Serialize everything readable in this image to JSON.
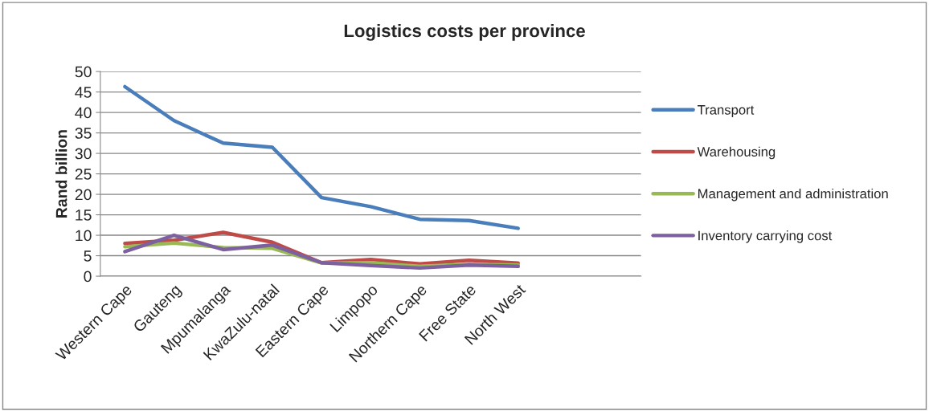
{
  "chart_data": {
    "type": "line",
    "title": "Logistics costs per province",
    "ylabel": "Rand billion",
    "categories": [
      "Western Cape",
      "Gauteng",
      "Mpumalanga",
      "KwaZulu-natal",
      "Eastern Cape",
      "Limpopo",
      "Northern Cape",
      "Free State",
      "North West",
      null,
      null
    ],
    "series": [
      {
        "name": "Transport",
        "color": "#4a7ebb",
        "values": [
          46.3,
          38,
          32.5,
          31.5,
          19.2,
          17,
          13.9,
          13.6,
          11.7,
          null,
          null
        ]
      },
      {
        "name": "Warehousing",
        "color": "#be4b48",
        "values": [
          8,
          8.8,
          10.7,
          8.3,
          3.3,
          4.1,
          3,
          3.9,
          3.2,
          null,
          null
        ]
      },
      {
        "name": "Management and administration",
        "color": "#98b954",
        "values": [
          7.2,
          8.1,
          7,
          6.8,
          3.2,
          3.3,
          2.4,
          2.9,
          2.7,
          null,
          null
        ]
      },
      {
        "name": "Inventory carrying cost",
        "color": "#7d60a0",
        "values": [
          6,
          10,
          6.5,
          7.6,
          3.3,
          2.6,
          2,
          2.7,
          2.4,
          null,
          null
        ]
      }
    ],
    "ylim": [
      0,
      50
    ],
    "yticks": [
      0,
      5,
      10,
      15,
      20,
      25,
      30,
      35,
      40,
      45,
      50
    ],
    "grid": "y",
    "legend": "right",
    "marker": "none",
    "line_style": "solid"
  }
}
